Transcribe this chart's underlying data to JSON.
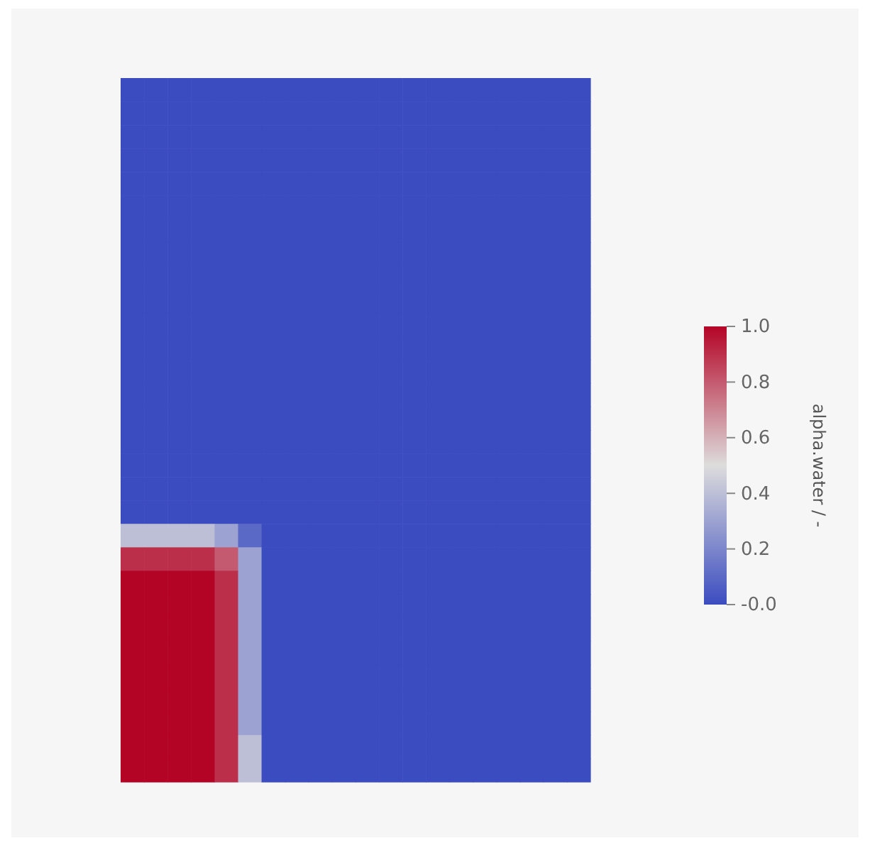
{
  "chart_data": {
    "type": "heatmap",
    "clabel": "alpha.water / -",
    "clim": [
      0,
      1
    ],
    "cticks": [
      {
        "value": 0,
        "label": "-0.0"
      },
      {
        "value": 0.2,
        "label": "0.2"
      },
      {
        "value": 0.4,
        "label": "0.4"
      },
      {
        "value": 0.6,
        "label": "0.6"
      },
      {
        "value": 0.8,
        "label": "0.8"
      },
      {
        "value": 1,
        "label": "1.0"
      }
    ],
    "colors": [
      "#3b4cc0",
      "#dddcdc",
      "#b40426"
    ],
    "categories": [
      null,
      null,
      null,
      null,
      null,
      null,
      null,
      null,
      null,
      null,
      null,
      null,
      null,
      null,
      null,
      null,
      null,
      null,
      null,
      null
    ],
    "y_categories": [
      null,
      null,
      null,
      null,
      null,
      null,
      null,
      null,
      null,
      null,
      null,
      null,
      null,
      null,
      null,
      null,
      null,
      null,
      null,
      null,
      null,
      null,
      null,
      null,
      null,
      null,
      null,
      null,
      null,
      null
    ],
    "cells": [
      [
        0,
        0,
        0,
        0,
        0,
        0,
        0,
        0,
        0,
        0,
        0,
        0,
        0,
        0,
        0,
        0,
        0,
        0,
        0,
        0
      ],
      [
        0,
        0,
        0,
        0,
        0,
        0,
        0,
        0,
        0,
        0,
        0,
        0,
        0,
        0,
        0,
        0,
        0,
        0,
        0,
        0
      ],
      [
        0,
        0,
        0,
        0,
        0,
        0,
        0,
        0,
        0,
        0,
        0,
        0,
        0,
        0,
        0,
        0,
        0,
        0,
        0,
        0
      ],
      [
        0,
        0,
        0,
        0,
        0,
        0,
        0,
        0,
        0,
        0,
        0,
        0,
        0,
        0,
        0,
        0,
        0,
        0,
        0,
        0
      ],
      [
        0,
        0,
        0,
        0,
        0,
        0,
        0,
        0,
        0,
        0,
        0,
        0,
        0,
        0,
        0,
        0,
        0,
        0,
        0,
        0
      ],
      [
        0,
        0,
        0,
        0,
        0,
        0,
        0,
        0,
        0,
        0,
        0,
        0,
        0,
        0,
        0,
        0,
        0,
        0,
        0,
        0
      ],
      [
        0,
        0,
        0,
        0,
        0,
        0,
        0,
        0,
        0,
        0,
        0,
        0,
        0,
        0,
        0,
        0,
        0,
        0,
        0,
        0
      ],
      [
        0,
        0,
        0,
        0,
        0,
        0,
        0,
        0,
        0,
        0,
        0,
        0,
        0,
        0,
        0,
        0,
        0,
        0,
        0,
        0
      ],
      [
        0,
        0,
        0,
        0,
        0,
        0,
        0,
        0,
        0,
        0,
        0,
        0,
        0,
        0,
        0,
        0,
        0,
        0,
        0,
        0
      ],
      [
        0,
        0,
        0,
        0,
        0,
        0,
        0,
        0,
        0,
        0,
        0,
        0,
        0,
        0,
        0,
        0,
        0,
        0,
        0,
        0
      ],
      [
        0,
        0,
        0,
        0,
        0,
        0,
        0,
        0,
        0,
        0,
        0,
        0,
        0,
        0,
        0,
        0,
        0,
        0,
        0,
        0
      ],
      [
        0,
        0,
        0,
        0,
        0,
        0,
        0,
        0,
        0,
        0,
        0,
        0,
        0,
        0,
        0,
        0,
        0,
        0,
        0,
        0
      ],
      [
        0,
        0,
        0,
        0,
        0,
        0,
        0,
        0,
        0,
        0,
        0,
        0,
        0,
        0,
        0,
        0,
        0,
        0,
        0,
        0
      ],
      [
        0,
        0,
        0,
        0,
        0,
        0,
        0,
        0,
        0,
        0,
        0,
        0,
        0,
        0,
        0,
        0,
        0,
        0,
        0,
        0
      ],
      [
        0,
        0,
        0,
        0,
        0,
        0,
        0,
        0,
        0,
        0,
        0,
        0,
        0,
        0,
        0,
        0,
        0,
        0,
        0,
        0
      ],
      [
        0,
        0,
        0,
        0,
        0,
        0,
        0,
        0,
        0,
        0,
        0,
        0,
        0,
        0,
        0,
        0,
        0,
        0,
        0,
        0
      ],
      [
        0,
        0,
        0,
        0,
        0,
        0,
        0,
        0,
        0,
        0,
        0,
        0,
        0,
        0,
        0,
        0,
        0,
        0,
        0,
        0
      ],
      [
        0,
        0,
        0,
        0,
        0,
        0,
        0,
        0,
        0,
        0,
        0,
        0,
        0,
        0,
        0,
        0,
        0,
        0,
        0,
        0
      ],
      [
        0,
        0,
        0,
        0,
        0,
        0,
        0,
        0,
        0,
        0,
        0,
        0,
        0,
        0,
        0,
        0,
        0,
        0,
        0,
        0
      ],
      [
        0.4,
        0.4,
        0.4,
        0.4,
        0.3,
        0.1,
        0,
        0,
        0,
        0,
        0,
        0,
        0,
        0,
        0,
        0,
        0,
        0,
        0,
        0
      ],
      [
        0.9,
        0.9,
        0.9,
        0.9,
        0.8,
        0.3,
        0,
        0,
        0,
        0,
        0,
        0,
        0,
        0,
        0,
        0,
        0,
        0,
        0,
        0
      ],
      [
        1,
        1,
        1,
        1,
        0.9,
        0.3,
        0,
        0,
        0,
        0,
        0,
        0,
        0,
        0,
        0,
        0,
        0,
        0,
        0,
        0
      ],
      [
        1,
        1,
        1,
        1,
        0.9,
        0.3,
        0,
        0,
        0,
        0,
        0,
        0,
        0,
        0,
        0,
        0,
        0,
        0,
        0,
        0
      ],
      [
        1,
        1,
        1,
        1,
        0.9,
        0.3,
        0,
        0,
        0,
        0,
        0,
        0,
        0,
        0,
        0,
        0,
        0,
        0,
        0,
        0
      ],
      [
        1,
        1,
        1,
        1,
        0.9,
        0.3,
        0,
        0,
        0,
        0,
        0,
        0,
        0,
        0,
        0,
        0,
        0,
        0,
        0,
        0
      ],
      [
        1,
        1,
        1,
        1,
        0.9,
        0.3,
        0,
        0,
        0,
        0,
        0,
        0,
        0,
        0,
        0,
        0,
        0,
        0,
        0,
        0
      ],
      [
        1,
        1,
        1,
        1,
        0.9,
        0.3,
        0,
        0,
        0,
        0,
        0,
        0,
        0,
        0,
        0,
        0,
        0,
        0,
        0,
        0
      ],
      [
        1,
        1,
        1,
        1,
        0.9,
        0.3,
        0,
        0,
        0,
        0,
        0,
        0,
        0,
        0,
        0,
        0,
        0,
        0,
        0,
        0
      ],
      [
        1,
        1,
        1,
        1,
        0.9,
        0.4,
        0,
        0,
        0,
        0,
        0,
        0,
        0,
        0,
        0,
        0,
        0,
        0,
        0,
        0
      ],
      [
        1,
        1,
        1,
        1,
        0.9,
        0.4,
        0,
        0,
        0,
        0,
        0,
        0,
        0,
        0,
        0,
        0,
        0,
        0,
        0,
        0
      ]
    ]
  }
}
